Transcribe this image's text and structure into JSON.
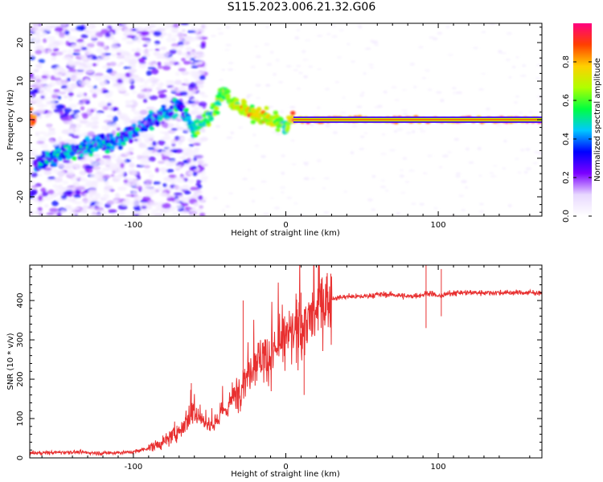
{
  "title": "S115.2023.006.21.32.G06",
  "colors": {
    "snr_line": "#e83030",
    "axis": "#000000"
  },
  "chart_data": [
    {
      "type": "heatmap",
      "xlabel": "Height of straight line (km)",
      "ylabel": "Frequency (Hz)",
      "xlim": [
        -168,
        168
      ],
      "ylim": [
        -25,
        25
      ],
      "x_ticks": [
        -100,
        0,
        100
      ],
      "y_ticks": [
        -20,
        -10,
        0,
        10,
        20
      ],
      "colorbar": {
        "label": "Normalized spectral amplitude",
        "range": [
          0,
          1
        ],
        "ticks": [
          0.0,
          0.2,
          0.4,
          0.6,
          0.8
        ],
        "colormap": [
          "#ffffff",
          "#e8d8ff",
          "#7b00ff",
          "#0000ff",
          "#00c8ff",
          "#00ff40",
          "#b0ff00",
          "#ffd000",
          "#ff4000",
          "#ff0080"
        ]
      },
      "ridge": {
        "x": [
          -165,
          -150,
          -140,
          -130,
          -120,
          -110,
          -100,
          -90,
          -80,
          -70,
          -60,
          -50,
          -45,
          -40,
          -35,
          -30,
          -25,
          -20,
          -15,
          -10,
          -5,
          0,
          5,
          50,
          100,
          150,
          168
        ],
        "y": [
          -12,
          -9,
          -8,
          -7,
          -6,
          -5,
          -3,
          -1,
          1,
          4,
          -3,
          1,
          4,
          8,
          4,
          3,
          2.5,
          2,
          1,
          0,
          -1,
          -2,
          0,
          0,
          0,
          0,
          0
        ],
        "amplitude": [
          0.35,
          0.4,
          0.4,
          0.38,
          0.4,
          0.35,
          0.35,
          0.35,
          0.4,
          0.35,
          0.5,
          0.55,
          0.6,
          0.6,
          0.65,
          0.7,
          0.7,
          0.75,
          0.7,
          0.7,
          0.6,
          0.55,
          0.85,
          0.9,
          0.9,
          0.9,
          0.9
        ]
      }
    },
    {
      "type": "line",
      "xlabel": "Height of straight line (km)",
      "ylabel": "SNR (10 * v/v)",
      "xlim": [
        -168,
        168
      ],
      "ylim": [
        0,
        490
      ],
      "x_ticks": [
        -100,
        0,
        100
      ],
      "y_ticks": [
        0,
        100,
        200,
        300,
        400
      ],
      "series": [
        {
          "x": [
            -168,
            -140,
            -120,
            -100,
            -90,
            -80,
            -70,
            -60,
            -50,
            -40,
            -30,
            -20,
            -10,
            0,
            10,
            20,
            25,
            30,
            40,
            50,
            60,
            70,
            80,
            90,
            95,
            100,
            110,
            120,
            140,
            168
          ],
          "values": [
            12,
            15,
            12,
            15,
            25,
            40,
            70,
            120,
            80,
            120,
            180,
            250,
            260,
            300,
            330,
            370,
            395,
            405,
            410,
            410,
            415,
            415,
            410,
            415,
            420,
            410,
            420,
            420,
            420,
            420
          ]
        }
      ],
      "spikes": [
        {
          "x": -62,
          "y": 190
        },
        {
          "x": -28,
          "y": 400
        },
        {
          "x": 10,
          "y": 420
        },
        {
          "x": 12,
          "y": 160
        },
        {
          "x": 92,
          "y": 330
        },
        {
          "x": 92,
          "y": 490
        },
        {
          "x": 102,
          "y": 480
        },
        {
          "x": 102,
          "y": 360
        }
      ]
    }
  ]
}
